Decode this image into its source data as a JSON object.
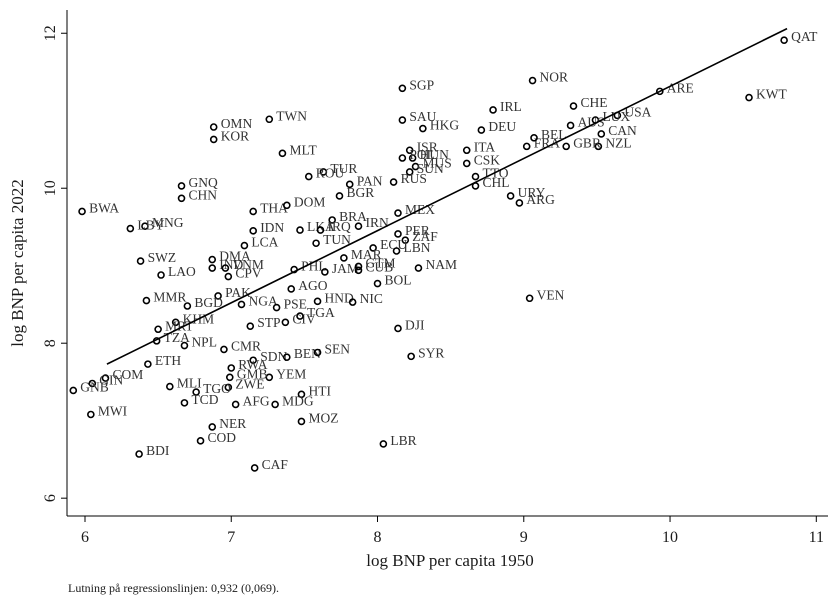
{
  "chart_data": {
    "type": "scatter",
    "xlabel": "log BNP per capita 1950",
    "ylabel": "log BNP per capita 2022",
    "note": "Lutning på regressionslinjen: 0,932 (0,069).",
    "xlim": [
      5.877,
      11.08
    ],
    "ylim": [
      5.77,
      12.3
    ],
    "xticks": [
      6,
      7,
      8,
      9,
      10,
      11
    ],
    "yticks": [
      6,
      8,
      10,
      12
    ],
    "color": "#000000",
    "fit": {
      "x": [
        6.15,
        10.8
      ],
      "y": [
        7.73,
        12.06
      ]
    },
    "labels": [
      "QAT",
      "ARE",
      "KWT",
      "NOR",
      "SGP",
      "IRL",
      "CHE",
      "USA",
      "LUX",
      "CAN",
      "NZL",
      "GBR",
      "FRA",
      "BEL",
      "AUS",
      "SAU",
      "HKG",
      "DEU",
      "ITA",
      "ISR",
      "CSK",
      "TTO",
      "CHL",
      "URY",
      "ARG",
      "MUS",
      "SUN",
      "HUN",
      "POL",
      "RUS",
      "TUR",
      "ROU",
      "MLT",
      "TWN",
      "OMN",
      "KOR",
      "GNQ",
      "CHN",
      "BWA",
      "MNG",
      "LBY",
      "THA",
      "DOM",
      "BRA",
      "IRN",
      "MEX",
      "BGR",
      "PAN",
      "PER",
      "ZAF",
      "ECU",
      "LBN",
      "IDN",
      "LKA",
      "IRQ",
      "LCA",
      "TUN",
      "SWZ",
      "LAO",
      "DMA",
      "IND",
      "VNM",
      "CPV",
      "PHL",
      "JAM",
      "GTM",
      "MAR",
      "CUB",
      "NAM",
      "BOL",
      "AGO",
      "PAK",
      "MMR",
      "BGD",
      "NGA",
      "PSE",
      "HND",
      "NIC",
      "VEN",
      "DJI",
      "SYR",
      "KHM",
      "MRT",
      "TZA",
      "NPL",
      "STP",
      "CIV",
      "TGA",
      "CMR",
      "SDN",
      "BEN",
      "SEN",
      "ETH",
      "RWA",
      "YEM",
      "GMB",
      "COM",
      "GIN",
      "GNB",
      "MLI",
      "ZWE",
      "TGO",
      "HTI",
      "TCD",
      "AFG",
      "MDG",
      "MWI",
      "MOZ",
      "NER",
      "COD",
      "LBR",
      "BDI",
      "CAF"
    ],
    "x": [
      10.78,
      9.93,
      10.54,
      9.06,
      8.17,
      8.79,
      9.34,
      9.64,
      9.49,
      9.53,
      9.51,
      9.29,
      9.02,
      9.07,
      9.32,
      8.17,
      8.31,
      8.71,
      8.61,
      8.22,
      8.61,
      8.67,
      8.67,
      8.91,
      8.97,
      8.26,
      8.22,
      8.24,
      8.17,
      8.11,
      7.63,
      7.53,
      7.35,
      7.26,
      6.88,
      6.88,
      6.66,
      6.66,
      5.98,
      6.41,
      6.31,
      7.15,
      7.38,
      7.69,
      7.87,
      8.14,
      7.74,
      7.81,
      8.14,
      8.19,
      7.97,
      8.13,
      7.15,
      7.47,
      7.61,
      7.09,
      7.58,
      6.38,
      6.52,
      6.87,
      6.87,
      6.96,
      6.98,
      7.43,
      7.64,
      7.87,
      7.77,
      7.87,
      8.28,
      8.0,
      7.41,
      6.91,
      6.42,
      6.7,
      7.07,
      7.31,
      7.59,
      7.83,
      9.04,
      8.14,
      8.23,
      6.62,
      6.5,
      6.49,
      6.68,
      7.13,
      7.37,
      7.47,
      6.95,
      7.15,
      7.38,
      7.59,
      6.43,
      7.0,
      7.26,
      6.99,
      6.14,
      6.05,
      5.92,
      6.58,
      6.98,
      6.76,
      7.48,
      6.68,
      7.03,
      7.3,
      6.04,
      7.48,
      6.87,
      6.79,
      8.04,
      6.37,
      7.16
    ],
    "y": [
      11.91,
      11.25,
      11.17,
      11.39,
      11.29,
      11.01,
      11.06,
      10.94,
      10.88,
      10.7,
      10.54,
      10.54,
      10.54,
      10.65,
      10.81,
      10.88,
      10.77,
      10.75,
      10.49,
      10.49,
      10.32,
      10.15,
      10.03,
      9.9,
      9.81,
      10.28,
      10.21,
      10.39,
      10.39,
      10.08,
      10.21,
      10.15,
      10.45,
      10.89,
      10.79,
      10.63,
      10.03,
      9.87,
      9.7,
      9.51,
      9.48,
      9.7,
      9.78,
      9.59,
      9.51,
      9.68,
      9.9,
      10.05,
      9.41,
      9.33,
      9.23,
      9.19,
      9.45,
      9.46,
      9.46,
      9.26,
      9.29,
      9.06,
      8.88,
      9.08,
      8.97,
      8.97,
      8.86,
      8.95,
      8.92,
      8.99,
      9.1,
      8.94,
      8.97,
      8.77,
      8.7,
      8.61,
      8.55,
      8.48,
      8.5,
      8.46,
      8.54,
      8.53,
      8.58,
      8.19,
      7.83,
      8.27,
      8.18,
      8.03,
      7.97,
      8.22,
      8.27,
      8.35,
      7.92,
      7.78,
      7.82,
      7.88,
      7.73,
      7.68,
      7.56,
      7.56,
      7.55,
      7.48,
      7.39,
      7.44,
      7.43,
      7.37,
      7.34,
      7.23,
      7.21,
      7.21,
      7.08,
      6.99,
      6.92,
      6.74,
      6.7,
      6.57,
      6.39
    ]
  }
}
